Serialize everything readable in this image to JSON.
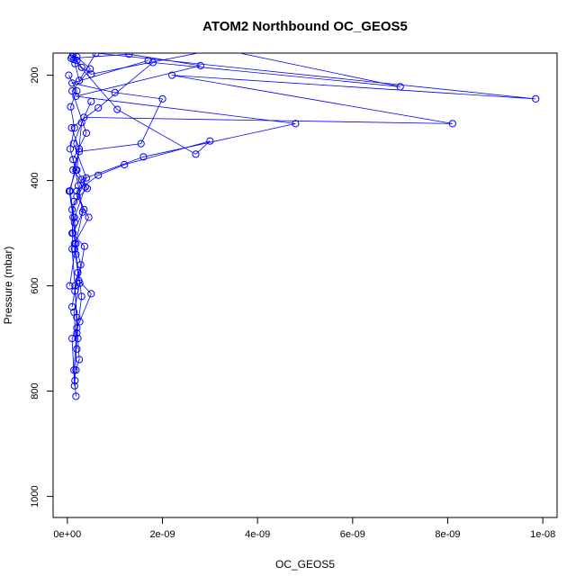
{
  "chart_data": {
    "type": "scatter",
    "title": "ATOM2 Northbound OC_GEOS5",
    "xlabel": "OC_GEOS5",
    "ylabel": "Pressure (mbar)",
    "xlim": [
      -3e-10,
      1.03e-08
    ],
    "ylim": [
      1040,
      158
    ],
    "y_reversed": true,
    "x_ticks": [
      0,
      2e-09,
      4e-09,
      6e-09,
      8e-09,
      1e-08
    ],
    "x_tick_labels": [
      "0e+00",
      "2e-09",
      "4e-09",
      "6e-09",
      "8e-09",
      "1e-08"
    ],
    "y_ticks": [
      200,
      400,
      600,
      800,
      1000
    ],
    "y_tick_labels": [
      "200",
      "400",
      "600",
      "800",
      "1000"
    ],
    "series_color": "#0000ff",
    "marker": "open-circle",
    "connected": true,
    "series": [
      {
        "x": [
          1.2e-10,
          2e-10,
          3e-10,
          5e-10,
          3.2e-09,
          7e-09,
          1.8e-09,
          6.5e-10,
          9e-11,
          2.5e-10,
          6e-11,
          1.5e-10
        ],
        "y": [
          160,
          172,
          185,
          198,
          150,
          222,
          176,
          262,
          300,
          340,
          420,
          480
        ]
      },
      {
        "x": [
          1e-10,
          1.6e-10,
          2.5e-10,
          6e-10,
          9.85e-09,
          2.2e-09,
          8.1e-09,
          3.5e-10,
          1.3e-10,
          4e-10,
          1e-10,
          1.8e-10,
          5e-11
        ],
        "y": [
          165,
          178,
          210,
          158,
          245,
          200,
          292,
          280,
          330,
          395,
          455,
          520,
          600
        ]
      },
      {
        "x": [
          8e-11,
          1.3e-09,
          2.8e-09,
          1.8e-10,
          4.8e-09,
          1.6e-09,
          3e-10,
          2e-10,
          4.5e-10,
          1.5e-10,
          2.2e-10,
          1e-10
        ],
        "y": [
          168,
          160,
          182,
          240,
          292,
          355,
          398,
          430,
          470,
          520,
          575,
          640
        ]
      },
      {
        "x": [
          1.4e-10,
          1.05e-09,
          2.7e-09,
          3e-09,
          1.2e-09,
          6.5e-10,
          2e-10,
          3.5e-10,
          1.2e-10,
          2.8e-10,
          1.6e-10,
          2e-10,
          2.2e-10,
          2.5e-10,
          1.8e-10
        ],
        "y": [
          170,
          265,
          350,
          325,
          370,
          390,
          420,
          455,
          500,
          560,
          610,
          660,
          700,
          740,
          760
        ]
      },
      {
        "x": [
          1.7e-09,
          1e-10,
          1e-09,
          2e-09,
          1.55e-09,
          2.5e-10,
          1.2e-10,
          3.8e-10,
          1.5e-10,
          1.8e-10,
          3e-10,
          2e-10,
          1.6e-10
        ],
        "y": [
          172,
          215,
          233,
          245,
          330,
          345,
          380,
          412,
          470,
          540,
          620,
          690,
          780
        ]
      },
      {
        "x": [
          2e-10,
          4.8e-10,
          1e-10,
          4e-10,
          1.2e-10,
          2.3e-10,
          3.2e-10,
          1.5e-10,
          2.6e-10,
          1.4e-10,
          2e-10
        ],
        "y": [
          165,
          188,
          230,
          310,
          360,
          410,
          460,
          530,
          595,
          650,
          720
        ]
      },
      {
        "x": [
          3e-11,
          2e-10,
          7e-11,
          1.5e-10,
          6e-11,
          1.8e-10,
          4e-11,
          1.2e-10,
          1e-10,
          1.6e-10,
          2e-10,
          1.4e-10,
          1.8e-10
        ],
        "y": [
          200,
          230,
          260,
          300,
          340,
          380,
          420,
          470,
          530,
          600,
          680,
          760,
          810
        ]
      },
      {
        "x": [
          5e-10,
          3e-10,
          2e-10,
          4.2e-10,
          1.4e-10,
          1e-10,
          3.6e-10,
          2.4e-10,
          5e-10,
          2.6e-10,
          1e-10,
          1.5e-10
        ],
        "y": [
          250,
          290,
          380,
          415,
          440,
          500,
          525,
          590,
          615,
          668,
          700,
          790
        ]
      }
    ]
  }
}
